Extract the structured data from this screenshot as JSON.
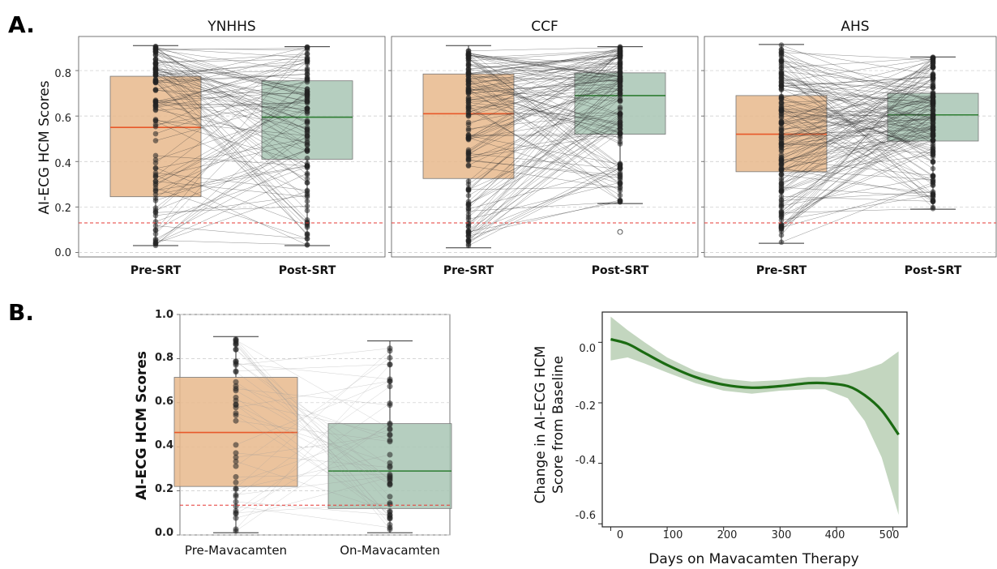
{
  "figure": {
    "panel_a_label": "A.",
    "panel_b_label": "B."
  },
  "colors": {
    "pre_box_fill": "#e8b98c",
    "pre_median": "#e8592a",
    "post_box_fill": "#a8c6b4",
    "post_median": "#2e7d32",
    "threshold_line": "#e53935",
    "trend_line": "#1b6b12",
    "trend_ci": "#b9cfb4",
    "points": "#222222"
  },
  "chart_data": [
    {
      "type": "box",
      "title": "YNHHS",
      "ylabel": "AI-ECG HCM Scores",
      "categories": [
        "Pre-SRT",
        "Post-SRT"
      ],
      "ylim": [
        -0.02,
        0.95
      ],
      "yticks": [
        "0.0",
        "0.2",
        "0.4",
        "0.6",
        "0.8"
      ],
      "threshold": 0.13,
      "grid": "horizontal dashed",
      "boxes": [
        {
          "q1": 0.245,
          "median": 0.55,
          "q3": 0.775,
          "whisker_low": 0.03,
          "whisker_high": 0.91
        },
        {
          "q1": 0.41,
          "median": 0.595,
          "q3": 0.755,
          "whisker_low": 0.03,
          "whisker_high": 0.905
        }
      ]
    },
    {
      "type": "box",
      "title": "CCF",
      "categories": [
        "Pre-SRT",
        "Post-SRT"
      ],
      "ylim": [
        -0.02,
        0.95
      ],
      "threshold": 0.13,
      "grid": "horizontal dashed",
      "boxes": [
        {
          "q1": 0.325,
          "median": 0.61,
          "q3": 0.785,
          "whisker_low": 0.02,
          "whisker_high": 0.91
        },
        {
          "q1": 0.52,
          "median": 0.69,
          "q3": 0.79,
          "whisker_low": 0.215,
          "whisker_high": 0.905,
          "outliers": [
            0.09
          ]
        }
      ]
    },
    {
      "type": "box",
      "title": "AHS",
      "categories": [
        "Pre-SRT",
        "Post-SRT"
      ],
      "ylim": [
        -0.02,
        0.95
      ],
      "threshold": 0.13,
      "grid": "horizontal dashed",
      "boxes": [
        {
          "q1": 0.355,
          "median": 0.52,
          "q3": 0.69,
          "whisker_low": 0.04,
          "whisker_high": 0.915
        },
        {
          "q1": 0.49,
          "median": 0.605,
          "q3": 0.7,
          "whisker_low": 0.19,
          "whisker_high": 0.86
        }
      ]
    },
    {
      "type": "box",
      "ylabel": "AI-ECG HCM Scores",
      "categories": [
        "Pre-Mavacamten",
        "On-Mavacamten"
      ],
      "ylim": [
        0.0,
        1.0
      ],
      "yticks": [
        "0.0",
        "0.2",
        "0.4",
        "0.6",
        "0.8",
        "1.0"
      ],
      "threshold": 0.135,
      "grid": "horizontal dashed",
      "boxes": [
        {
          "q1": 0.22,
          "median": 0.465,
          "q3": 0.715,
          "whisker_low": 0.01,
          "whisker_high": 0.9
        },
        {
          "q1": 0.12,
          "median": 0.29,
          "q3": 0.505,
          "whisker_low": 0.01,
          "whisker_high": 0.88
        }
      ]
    },
    {
      "type": "line",
      "xlabel": "Days on Mavacamten Therapy",
      "ylabel": "Change in AI-ECG HCM\nScore from Baseline",
      "xlim": [
        -15,
        525
      ],
      "ylim": [
        -0.61,
        0.1
      ],
      "xticks": [
        "0",
        "100",
        "200",
        "300",
        "400",
        "500"
      ],
      "yticks": [
        "0.0",
        "-0.2",
        "-0.4",
        "-0.6"
      ],
      "series": [
        {
          "x": [
            0,
            30,
            60,
            100,
            150,
            200,
            250,
            300,
            350,
            380,
            420,
            450,
            480,
            510
          ],
          "y": [
            0.01,
            -0.005,
            -0.035,
            -0.075,
            -0.115,
            -0.14,
            -0.15,
            -0.145,
            -0.135,
            -0.135,
            -0.145,
            -0.175,
            -0.225,
            -0.305
          ],
          "ci_low": [
            -0.06,
            -0.05,
            -0.07,
            -0.1,
            -0.135,
            -0.16,
            -0.17,
            -0.16,
            -0.155,
            -0.155,
            -0.185,
            -0.26,
            -0.38,
            -0.57
          ],
          "ci_high": [
            0.085,
            0.04,
            0.0,
            -0.05,
            -0.095,
            -0.12,
            -0.13,
            -0.125,
            -0.115,
            -0.115,
            -0.105,
            -0.09,
            -0.07,
            -0.03
          ]
        }
      ]
    }
  ]
}
